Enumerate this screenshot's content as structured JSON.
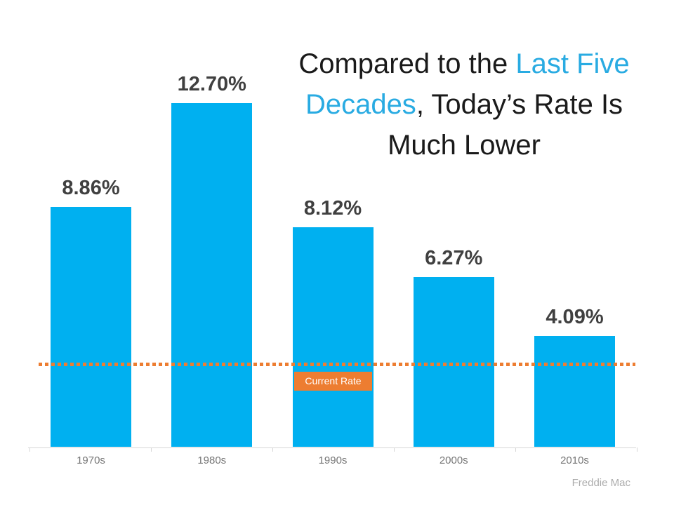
{
  "title": {
    "lines": [
      [
        {
          "text": "Compared to the ",
          "accent": false
        },
        {
          "text": "Last Five",
          "accent": true
        }
      ],
      [
        {
          "text": "Decades",
          "accent": true
        },
        {
          "text": ", Today’s Rate Is",
          "accent": false
        }
      ],
      [
        {
          "text": "Much Lower",
          "accent": false
        }
      ]
    ]
  },
  "chart_data": {
    "type": "bar",
    "categories": [
      "1970s",
      "1980s",
      "1990s",
      "2000s",
      "2010s"
    ],
    "values": [
      8.86,
      12.7,
      8.12,
      6.27,
      4.09
    ],
    "value_labels": [
      "8.86%",
      "12.70%",
      "8.12%",
      "6.27%",
      "4.09%"
    ],
    "title": "Compared to the Last Five Decades, Today’s Rate Is Much Lower",
    "xlabel": "",
    "ylabel": "",
    "ylim": [
      0,
      14
    ],
    "grid": false,
    "legend": false,
    "reference_line": {
      "label": "Current Rate",
      "value": 3.05,
      "style": "dotted"
    },
    "source": "Freddie Mac"
  },
  "colors": {
    "background": "#ffffff",
    "bar": "#00b0f0",
    "title_dark": "#1a1a1a",
    "title_accent": "#29abe2",
    "reference": "#ed7d31",
    "value_label": "#404040",
    "axis": "#d6d6d6",
    "tick_label": "#767676",
    "source": "#acacac"
  }
}
